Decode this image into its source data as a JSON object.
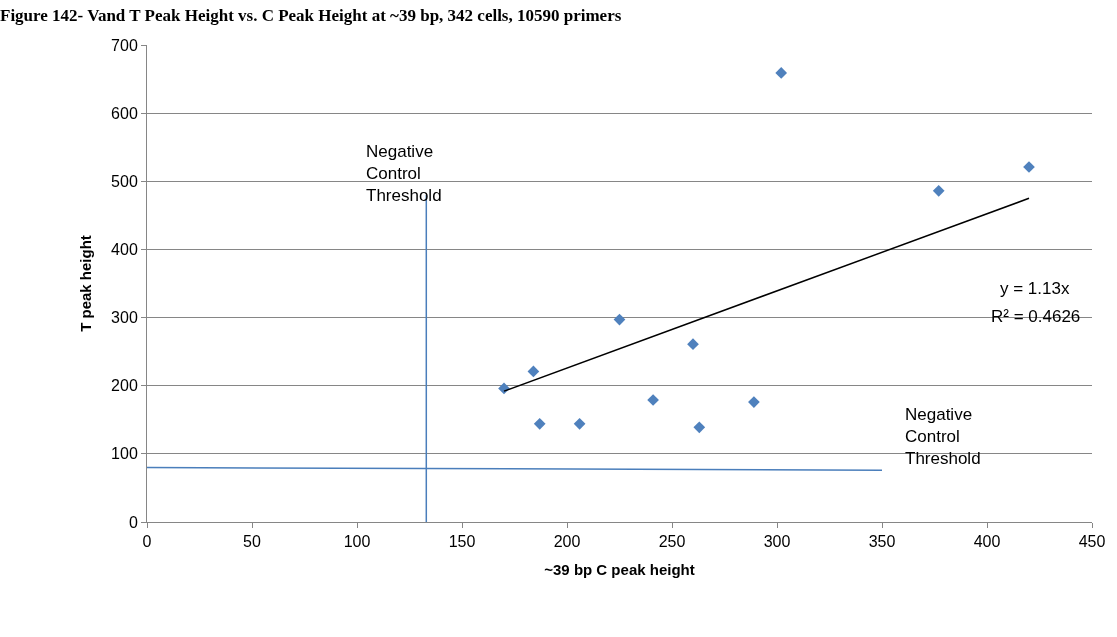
{
  "chart_data": {
    "type": "scatter",
    "title": "Figure 142- Vand T Peak Height vs. C Peak Height at ~39 bp, 342 cells, 10590 primers",
    "xlabel": "~39 bp C peak height",
    "ylabel": "T peak height",
    "x": [
      170,
      184,
      187,
      206,
      225,
      241,
      260,
      263,
      289,
      302,
      377,
      420
    ],
    "series": [
      {
        "color": "#4f81bd",
        "marker": "diamond",
        "values": [
          196,
          221,
          144,
          144,
          297,
          179,
          261,
          139,
          176,
          659,
          486,
          521
        ]
      },
      {
        "type": "line",
        "color": "#000000",
        "x": [
          170,
          420
        ],
        "values": [
          192,
          475
        ]
      },
      {
        "type": "line",
        "color": "#4a7ebb",
        "x": [
          0,
          350
        ],
        "values": [
          80,
          76
        ]
      },
      {
        "type": "line",
        "color": "#4a7ebb",
        "x": [
          133,
          133
        ],
        "values": [
          0,
          480
        ]
      }
    ],
    "xlim": [
      0,
      450
    ],
    "xticks": [
      0,
      50,
      100,
      150,
      200,
      250,
      300,
      350,
      400,
      450
    ],
    "ylim": [
      0,
      700
    ],
    "yticks": [
      0,
      100,
      200,
      300,
      400,
      500,
      600,
      700
    ],
    "grid": "y",
    "legend": false,
    "annotations": [
      "y = 1.13x",
      "R² = 0.4626",
      "Negative Control Threshold",
      "Negative Control Threshold"
    ]
  }
}
